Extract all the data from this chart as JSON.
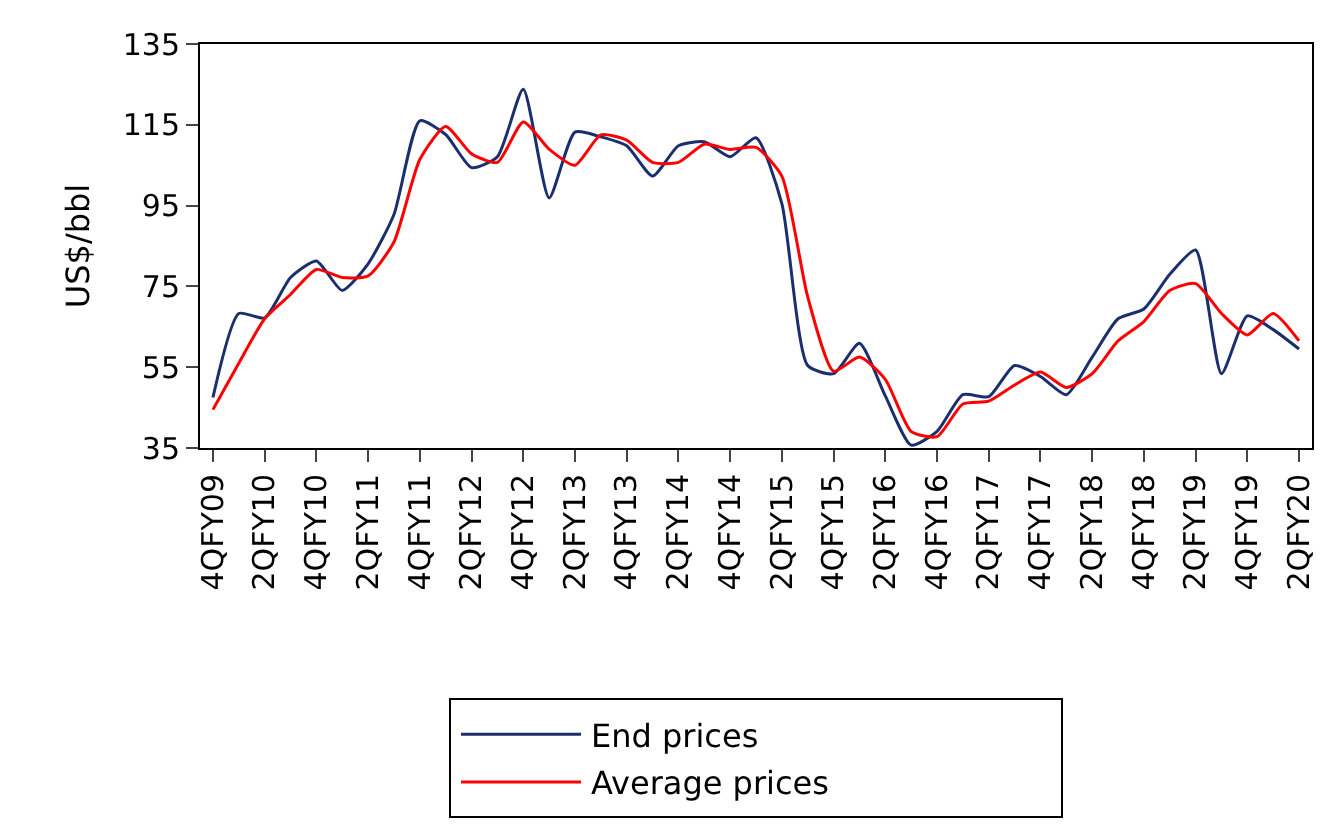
{
  "chart_data": {
    "type": "line",
    "ylabel": "US$/bbl",
    "categories": [
      "4QFY09",
      null,
      "2QFY10",
      null,
      "4QFY10",
      null,
      "2QFY11",
      null,
      "4QFY11",
      null,
      "2QFY12",
      null,
      "4QFY12",
      null,
      "2QFY13",
      null,
      "4QFY13",
      null,
      "2QFY14",
      null,
      "4QFY14",
      null,
      "2QFY15",
      null,
      "4QFY15",
      null,
      "2QFY16",
      null,
      "4QFY16",
      null,
      "2QFY17",
      null,
      "4QFY17",
      null,
      "2QFY18",
      null,
      "4QFY18",
      null,
      "2QFY19",
      null,
      "4QFY19",
      null,
      "2QFY20"
    ],
    "series": [
      {
        "name": "End prices",
        "color": "#1b2f6e",
        "values": [
          47.5,
          68.3,
          67.2,
          77.2,
          81.3,
          74,
          80.6,
          92.8,
          116,
          112.6,
          104.4,
          107.1,
          123.8,
          96.9,
          113.2,
          112,
          109.8,
          102.3,
          109.8,
          110.8,
          107.1,
          111.8,
          95.5,
          55.4,
          53.4,
          60.9,
          47.9,
          35.7,
          39.1,
          48.2,
          47.7,
          55.4,
          52.7,
          48.2,
          57.5,
          67,
          69.4,
          78,
          84,
          53.4,
          67.7,
          64.3,
          59.5
        ]
      },
      {
        "name": "Average prices",
        "color": "#ff0000",
        "values": [
          44.5,
          56,
          67,
          73,
          79.2,
          77.2,
          77.6,
          86,
          106.4,
          114.6,
          107.8,
          105.7,
          115.7,
          109,
          105,
          112.5,
          111.2,
          105.7,
          105.7,
          110.2,
          108.9,
          109.4,
          102.3,
          72.4,
          54,
          57.5,
          52,
          39.1,
          37.8,
          45.9,
          46.6,
          50.6,
          53.8,
          50,
          53.4,
          61.5,
          66.3,
          74,
          75.7,
          68.3,
          63,
          68.3,
          61.5
        ]
      }
    ],
    "ylim": [
      35,
      135
    ],
    "yticks": [
      35,
      55,
      75,
      95,
      115,
      135
    ],
    "grid": false,
    "legend": "bottom",
    "marker": "none",
    "line_style": "solid"
  }
}
